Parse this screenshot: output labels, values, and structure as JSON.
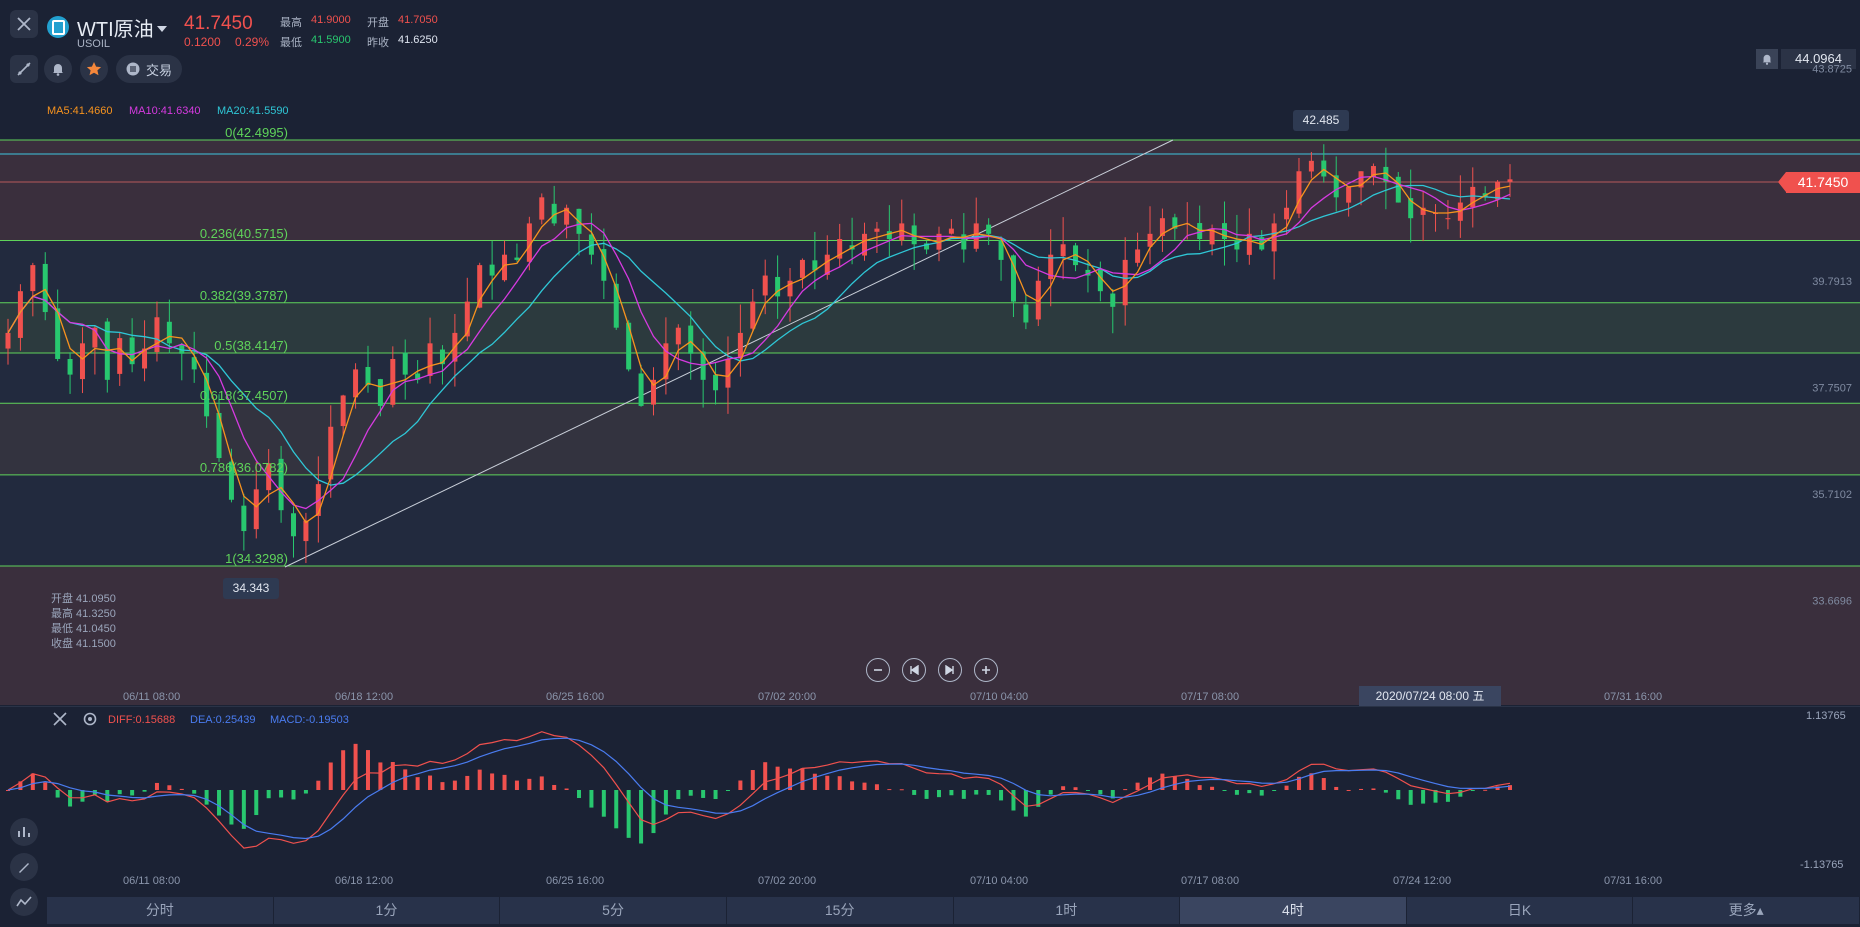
{
  "symbol": {
    "name": "WTI原油",
    "code": "USOIL",
    "price": "41.7450",
    "change": "0.1200",
    "change_pct": "0.29%",
    "high_label": "最高",
    "high": "41.9000",
    "open_label": "开盘",
    "open": "41.7050",
    "low_label": "最低",
    "low": "41.5900",
    "prev_label": "昨收",
    "prev": "41.6250"
  },
  "toolbar": {
    "trade_label": "交易"
  },
  "alert_price": "44.0964",
  "ma": {
    "ma5": "MA5:41.4660",
    "ma10": "MA10:41.6340",
    "ma20": "MA20:41.5590"
  },
  "fib": [
    {
      "label": "0(42.4995)",
      "value": 42.4995
    },
    {
      "label": "0.236(40.5715)",
      "value": 40.5715
    },
    {
      "label": "0.382(39.3787)",
      "value": 39.3787
    },
    {
      "label": "0.5(38.4147)",
      "value": 38.4147
    },
    {
      "label": "0.618(37.4507)",
      "value": 37.4507
    },
    {
      "label": "0.786(36.0782)",
      "value": 36.0782
    },
    {
      "label": "1(34.3298)",
      "value": 34.3298
    }
  ],
  "price_axis": [
    "43.8725",
    "39.7913",
    "37.7507",
    "35.7102",
    "33.6696"
  ],
  "price_axis_values": [
    43.8725,
    39.7913,
    37.7507,
    35.7102,
    33.6696
  ],
  "current_price_tag": "41.7450",
  "high_marker": "42.485",
  "low_marker": "34.343",
  "ohlc": {
    "open": "开盘 41.0950",
    "high": "最高 41.3250",
    "low": "最低 41.0450",
    "close": "收盘 41.1500"
  },
  "time_axis": [
    "06/11 08:00",
    "06/18 12:00",
    "06/25 16:00",
    "07/02 20:00",
    "07/10 04:00",
    "07/17 08:00",
    "07/31 16:00"
  ],
  "crosshair_time": "2020/07/24 08:00 五",
  "macd": {
    "diff": "DIFF:0.15688",
    "dea": "DEA:0.25439",
    "macd": "MACD:-0.19503",
    "axis_top": "1.13765",
    "axis_bottom": "-1.13765"
  },
  "macd_time_axis": [
    "06/11 08:00",
    "06/18 12:00",
    "06/25 16:00",
    "07/02 20:00",
    "07/10 04:00",
    "07/17 08:00",
    "07/24 12:00",
    "07/31 16:00"
  ],
  "tabs": [
    {
      "label": "分时",
      "active": false
    },
    {
      "label": "1分",
      "active": false
    },
    {
      "label": "5分",
      "active": false
    },
    {
      "label": "15分",
      "active": false
    },
    {
      "label": "1时",
      "active": false
    },
    {
      "label": "4时",
      "active": true
    },
    {
      "label": "日K",
      "active": false
    },
    {
      "label": "更多▴",
      "active": false
    }
  ],
  "colors": {
    "up": "#f0514e",
    "down": "#28c76f",
    "ma5": "#f7931e",
    "ma10": "#d63ae0",
    "ma20": "#2fc7d6",
    "fib": "#5fd35a",
    "bg": "#1b2234"
  },
  "chart_data": {
    "type": "candlestick",
    "price_range": [
      32.9,
      44.2
    ],
    "close_path": [
      38.8,
      39.6,
      40.1,
      39.2,
      38.3,
      38.0,
      38.6,
      38.9,
      37.9,
      38.7,
      38.2,
      38.5,
      39.1,
      38.6,
      38.4,
      38.1,
      37.2,
      36.4,
      35.6,
      35.0,
      35.8,
      36.3,
      35.4,
      34.9,
      35.2,
      35.9,
      37.0,
      37.6,
      38.1,
      37.8,
      37.4,
      38.3,
      38.0,
      37.9,
      38.6,
      38.2,
      38.8,
      39.4,
      40.1,
      39.9,
      40.3,
      40.2,
      40.9,
      41.4,
      40.9,
      41.2,
      40.7,
      40.3,
      39.8,
      38.9,
      38.1,
      37.4,
      37.9,
      38.6,
      38.9,
      38.4,
      37.9,
      37.7,
      38.3,
      38.8,
      39.4,
      39.9,
      39.5,
      39.8,
      40.2,
      40.0,
      40.3,
      40.6,
      40.4,
      40.7,
      40.8,
      40.6,
      40.9,
      40.5,
      40.4,
      40.7,
      40.8,
      40.4,
      40.9,
      40.7,
      40.2,
      39.4,
      39.0,
      39.8,
      40.3,
      40.5,
      40.1,
      39.9,
      39.6,
      39.3,
      40.2,
      40.4,
      40.7,
      41.0,
      40.8,
      40.9,
      40.6,
      40.8,
      40.6,
      40.4,
      40.7,
      40.4,
      40.9,
      41.2,
      41.9,
      42.1,
      41.8,
      41.4,
      41.6,
      41.9,
      42.0,
      41.7,
      41.3,
      41.0,
      41.2,
      41.1,
      41.0,
      41.3,
      41.6,
      41.4,
      41.7,
      41.745
    ]
  }
}
